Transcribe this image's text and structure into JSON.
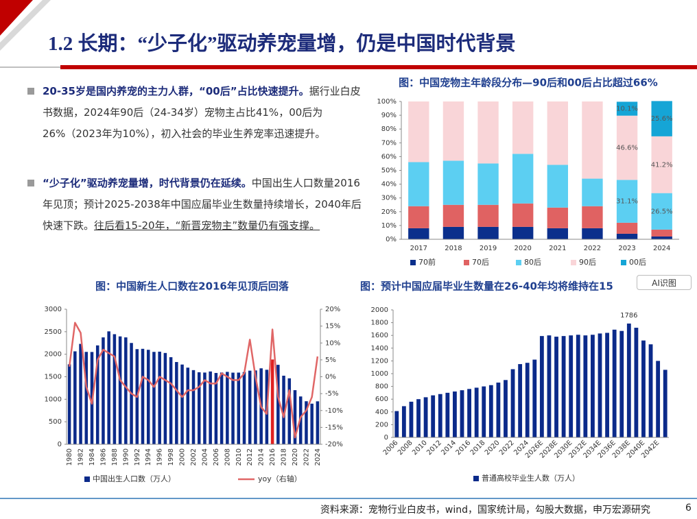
{
  "header": {
    "title": "1.2 长期：“少子化”驱动养宠量增，仍是中国时代背景"
  },
  "bullets": [
    {
      "bold": "20-35岁是国内养宠的主力人群，“00后”占比快速提升。",
      "text": "据行业白皮书数据，2024年90后（24-34岁）宠物主占比41%，00后为26%（2023年为10%），初入社会的毕业生养宠率迅速提升。"
    },
    {
      "bold": "“少子化”驱动养宠量增，时代背景仍在延续。",
      "text": "中国出生人口数量2016年见顶；预计2025-2038年中国应届毕业生数量持续增长，2040年后快速下跌。",
      "underline": "往后看15-20年，“新晋宠物主”数量仍有强支撑。"
    }
  ],
  "overlay": {
    "ai_button": "AI识图"
  },
  "footer": {
    "source": "资料来源：宠物行业白皮书，wind，国家统计局，勾股大数据，申万宏源研究",
    "page": "6"
  },
  "chart_data": [
    {
      "type": "stacked_bar",
      "title": "图：中国宠物主年龄段分布—90后和00后占比超过66%",
      "categories": [
        "2017",
        "2018",
        "2019",
        "2020",
        "2021",
        "2022",
        "2023",
        "2024"
      ],
      "series": [
        {
          "name": "70前",
          "color": "#0b2f8c",
          "values": [
            8,
            9,
            9,
            9,
            8,
            8,
            4,
            2
          ]
        },
        {
          "name": "70后",
          "color": "#e06262",
          "values": [
            16,
            16,
            16,
            17,
            15,
            16,
            8,
            5
          ]
        },
        {
          "name": "80后",
          "color": "#5ccff2",
          "values": [
            32,
            32,
            30,
            36,
            31,
            20,
            31.1,
            26.5
          ],
          "value_labels": [
            null,
            null,
            null,
            null,
            null,
            null,
            "31.1%",
            "26.5%"
          ]
        },
        {
          "name": "90后",
          "color": "#f9d5d8",
          "values": [
            44,
            43,
            45,
            38,
            46,
            56,
            46.6,
            41.2
          ],
          "value_labels": [
            null,
            null,
            null,
            null,
            null,
            null,
            "46.6%",
            "41.2%"
          ]
        },
        {
          "name": "00后",
          "color": "#15a5d6",
          "values": [
            0,
            0,
            0,
            0,
            0,
            0,
            10.1,
            25.6
          ],
          "value_labels": [
            null,
            null,
            null,
            null,
            null,
            null,
            "10.1%",
            "25.6%"
          ]
        }
      ],
      "ylim": [
        0,
        100
      ],
      "yticks": [
        {
          "value": 0,
          "label": "0%"
        },
        {
          "value": 10,
          "label": "10%"
        },
        {
          "value": 20,
          "label": "20%"
        },
        {
          "value": 30,
          "label": "30%"
        },
        {
          "value": 40,
          "label": "40%"
        },
        {
          "value": 50,
          "label": "50%"
        },
        {
          "value": 60,
          "label": "60%"
        },
        {
          "value": 70,
          "label": "70%"
        },
        {
          "value": 80,
          "label": "80%"
        },
        {
          "value": 90,
          "label": "90%"
        },
        {
          "value": 100,
          "label": "100%"
        }
      ],
      "legend": "bottom"
    },
    {
      "type": "combo",
      "title": "图：中国新生人口数在2016年见顶后回落",
      "categories": [
        "1980",
        null,
        "1982",
        null,
        "1984",
        null,
        "1986",
        null,
        "1988",
        null,
        "1990",
        null,
        "1992",
        null,
        "1994",
        null,
        "1996",
        null,
        "1998",
        null,
        "2000",
        null,
        "2002",
        null,
        "2004",
        null,
        "2006",
        null,
        "2008",
        null,
        "2010",
        null,
        "2012",
        null,
        "2014",
        null,
        "2016",
        null,
        "2018",
        null,
        "2020",
        null,
        "2022",
        null,
        "2024"
      ],
      "series": [
        {
          "name": "中国出生人口数（万人）",
          "type": "bar",
          "color": "#0b2a8a",
          "highlight": {
            "index": 36,
            "color": "#e02020"
          },
          "values": [
            1776,
            2064,
            2230,
            2052,
            2050,
            2196,
            2374,
            2508,
            2445,
            2396,
            2374,
            2250,
            2113,
            2120,
            2098,
            2052,
            2057,
            2028,
            1934,
            1827,
            1771,
            1702,
            1647,
            1599,
            1593,
            1617,
            1584,
            1594,
            1608,
            1591,
            1592,
            1604,
            1635,
            1640,
            1687,
            1655,
            1883,
            1765,
            1523,
            1465,
            1202,
            1062,
            956,
            902,
            954
          ]
        },
        {
          "name": "yoy（右轴）",
          "type": "line",
          "axis": "y2",
          "color": "#e06666",
          "values": [
            3,
            16,
            13,
            -3,
            -8,
            5,
            8,
            7,
            6,
            -1,
            -3,
            -5,
            -6,
            0,
            -1,
            -3,
            0,
            -1,
            -2,
            -4,
            -6,
            -4,
            -4,
            -3,
            -1,
            -2,
            -2,
            1,
            0,
            -1,
            -1,
            1,
            11,
            0,
            -9,
            -11,
            14,
            -6,
            -12,
            -4,
            -18,
            -12,
            -10,
            -6,
            6
          ]
        }
      ],
      "ylim": [
        0,
        3000
      ],
      "yticks": [
        0,
        500,
        1000,
        1500,
        2000,
        2500,
        3000
      ],
      "y2lim": [
        -20,
        20
      ],
      "y2ticks": [
        {
          "value": -20,
          "label": "-20%"
        },
        {
          "value": -15,
          "label": "-15%"
        },
        {
          "value": -10,
          "label": "-10%"
        },
        {
          "value": -5,
          "label": "-5%"
        },
        {
          "value": 0,
          "label": "0%"
        },
        {
          "value": 5,
          "label": "5%"
        },
        {
          "value": 10,
          "label": "10%"
        },
        {
          "value": 15,
          "label": "15%"
        },
        {
          "value": 20,
          "label": "20%"
        }
      ],
      "legend": "bottom"
    },
    {
      "type": "bar",
      "title": "图：预计中国应届毕业生数量在26-40年均将维持在15",
      "categories": [
        "2006",
        null,
        "2008",
        null,
        "2010",
        null,
        "2012",
        null,
        "2014",
        null,
        "2016",
        null,
        "2018",
        null,
        "2020",
        null,
        "2022",
        null,
        "2024",
        null,
        "2026E",
        null,
        "2028E",
        null,
        "2030E",
        null,
        "2032E",
        null,
        "2034E",
        null,
        "2036E",
        null,
        "2038E",
        null,
        "2040E",
        null,
        "2042E",
        null
      ],
      "series": [
        {
          "name": "普通高校毕业生人数（万人）",
          "type": "bar",
          "color": "#0b2a8a",
          "values": [
            413,
            490,
            560,
            600,
            630,
            660,
            680,
            700,
            720,
            740,
            760,
            780,
            800,
            820,
            860,
            900,
            1070,
            1150,
            1170,
            1220,
            1590,
            1600,
            1580,
            1590,
            1600,
            1610,
            1600,
            1610,
            1630,
            1640,
            1690,
            1670,
            1786,
            1720,
            1520,
            1460,
            1200,
            1060
          ]
        }
      ],
      "show_max_label": true,
      "ylim": [
        0,
        2000
      ],
      "yticks": [
        0,
        200,
        400,
        600,
        800,
        1000,
        1200,
        1400,
        1600,
        1800,
        2000
      ],
      "legend": "bottom"
    }
  ]
}
